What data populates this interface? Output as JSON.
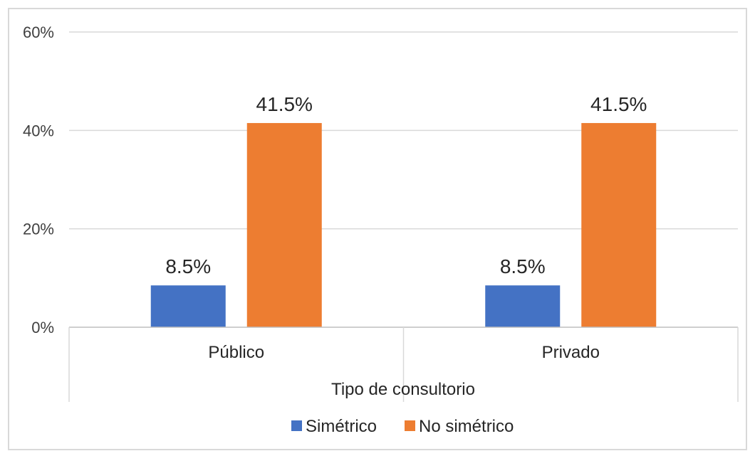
{
  "chart_data": {
    "type": "bar",
    "xlabel": "Tipo de consultorio",
    "ylabel": "",
    "ylim": [
      0,
      60
    ],
    "yticks": [
      "0%",
      "20%",
      "40%",
      "60%"
    ],
    "ytick_values": [
      0,
      20,
      40,
      60
    ],
    "categories": [
      "Público",
      "Privado"
    ],
    "series": [
      {
        "name": "Simétrico",
        "color": "#4472C4",
        "values": [
          8.5,
          8.5
        ],
        "labels": [
          "8.5%",
          "8.5%"
        ]
      },
      {
        "name": "No simétrico",
        "color": "#ED7D31",
        "values": [
          41.5,
          41.5
        ],
        "labels": [
          "41.5%",
          "41.5%"
        ]
      }
    ],
    "grid": true,
    "legend_position": "bottom"
  }
}
